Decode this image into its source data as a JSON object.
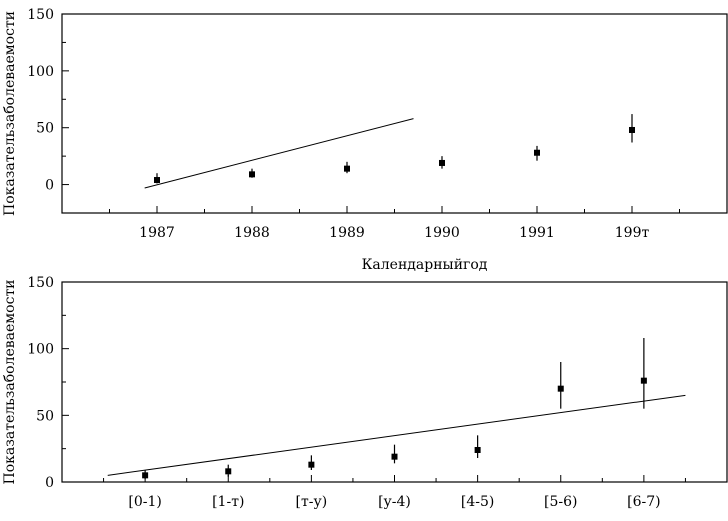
{
  "chart_data": [
    {
      "type": "scatter",
      "title": "",
      "xlabel": "Календарныйгод",
      "ylabel": "Показательзаболеваемости",
      "categories": [
        "1987",
        "1988",
        "1989",
        "1990",
        "1991",
        "199т"
      ],
      "x": [
        1987,
        1988,
        1989,
        1990,
        1991,
        1992
      ],
      "xlim": [
        1986,
        1993
      ],
      "ylim": [
        -25,
        150
      ],
      "yticks": [
        0,
        50,
        100,
        150
      ],
      "series": [
        {
          "values": [
            4,
            9,
            14,
            19,
            28,
            48
          ],
          "error_low": [
            1,
            6,
            10,
            14,
            21,
            37
          ],
          "error_high": [
            10,
            14,
            20,
            25,
            34,
            62
          ]
        }
      ],
      "trend": {
        "x": [
          1986.87,
          1989.7
        ],
        "y": [
          -3,
          58
        ]
      },
      "grid": false
    },
    {
      "type": "scatter",
      "title": "",
      "xlabel": "",
      "ylabel": "Показательзаболеваемости",
      "categories": [
        "[0-1)",
        "[1-т)",
        "[т-у)",
        "[у-4)",
        "[4-5)",
        "[5-6)",
        "[6-7)"
      ],
      "xlim": [
        0,
        8
      ],
      "ylim": [
        0,
        150
      ],
      "yticks": [
        0,
        50,
        100,
        150
      ],
      "series": [
        {
          "values": [
            5,
            8,
            13,
            19,
            24,
            70,
            76
          ],
          "error_low": [
            2,
            4,
            9,
            14,
            18,
            55,
            55
          ],
          "error_high": [
            9,
            13,
            20,
            28,
            35,
            90,
            108
          ]
        }
      ],
      "trend": {
        "x": [
          0.55,
          7.5
        ],
        "y": [
          5,
          65
        ]
      },
      "grid": false
    }
  ]
}
